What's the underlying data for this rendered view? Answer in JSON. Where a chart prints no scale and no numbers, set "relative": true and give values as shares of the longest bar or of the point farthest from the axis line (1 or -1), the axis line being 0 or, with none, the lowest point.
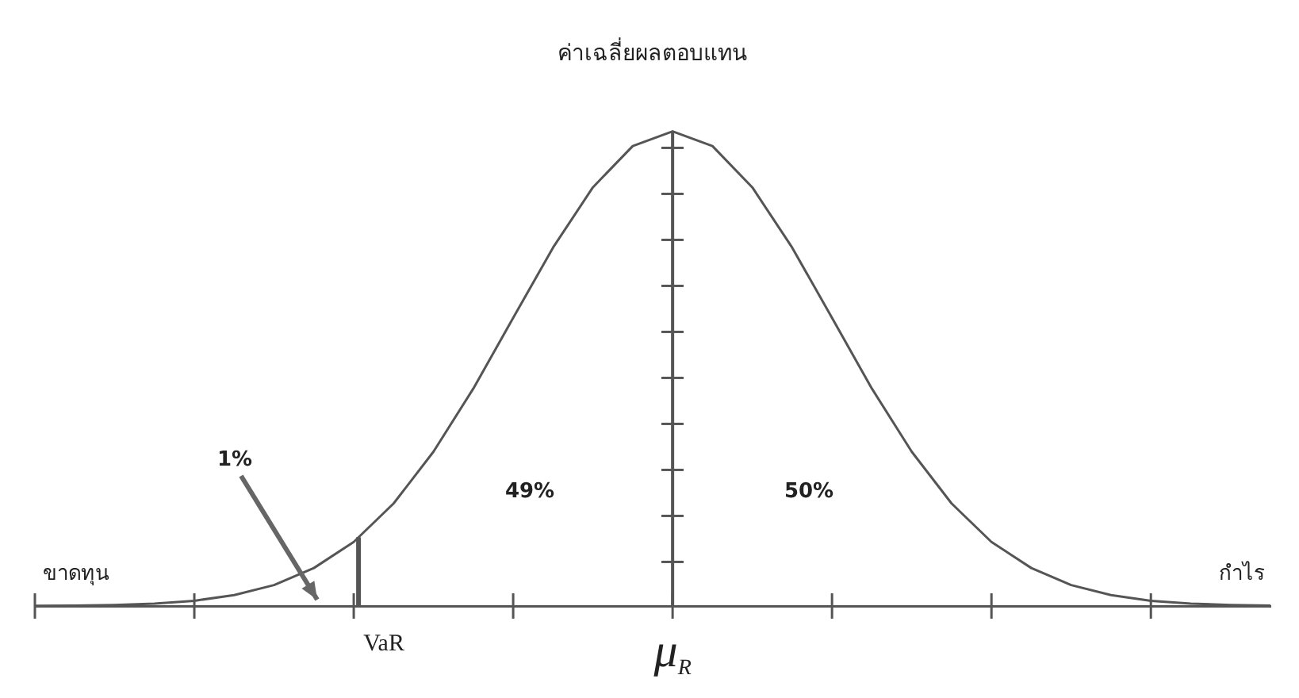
{
  "chart_data": {
    "type": "line",
    "title": "ค่าเฉลี่ยผลตอบแทน",
    "relative": true,
    "categories": [
      null,
      null,
      null,
      null,
      null,
      null,
      null,
      null,
      null,
      null,
      null,
      null,
      null,
      null,
      null,
      null,
      null,
      null,
      null,
      null,
      null,
      null,
      null,
      null,
      null,
      null,
      null,
      null,
      null,
      null,
      null,
      null
    ],
    "series": [
      {
        "color": "#555555",
        "values": [
          0.0003,
          0.0009,
          0.0022,
          0.005,
          0.011,
          0.023,
          0.044,
          0.08,
          0.135,
          0.216,
          0.325,
          0.458,
          0.607,
          0.755,
          0.882,
          0.969,
          1,
          0.969,
          0.882,
          0.755,
          0.607,
          0.458,
          0.325,
          0.216,
          0.135,
          0.08,
          0.044,
          0.023,
          0.011,
          0.005,
          0.0022,
          0.0009
        ]
      }
    ],
    "annotations": [
      "1%",
      "49%",
      "50%",
      "ขาดทุน",
      "กำไร",
      "VaR",
      "μ$_{R}$"
    ],
    "grid": false,
    "legend": false,
    "marker": "none",
    "line_style": "solid"
  }
}
